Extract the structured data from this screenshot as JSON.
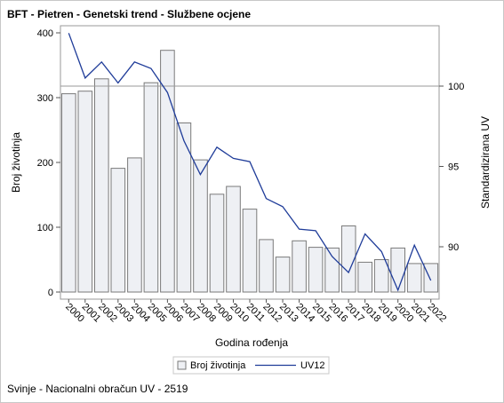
{
  "chart_data": {
    "type": "bar",
    "title": "BFT - Pietren - Genetski trend - Službene ocjene",
    "footnote": "Svinje - Nacionalni obračun UV - 2519",
    "xlabel": "Godina rođenja",
    "ylabel": "Broj životinja",
    "y2label": "Standardizirana UV",
    "categories": [
      "2000",
      "2001",
      "2002",
      "2003",
      "2004",
      "2005",
      "2006",
      "2007",
      "2008",
      "2009",
      "2010",
      "2011",
      "2012",
      "2013",
      "2014",
      "2015",
      "2016",
      "2017",
      "2018",
      "2019",
      "2020",
      "2021",
      "2022"
    ],
    "ylim": [
      0,
      410
    ],
    "yticks": [
      0,
      100,
      200,
      300,
      400
    ],
    "y2lim": [
      86.9,
      103.4
    ],
    "y2ticks": [
      90,
      95,
      100
    ],
    "reference_line_y2": 100,
    "grid": false,
    "legend_position": "bottom",
    "series": [
      {
        "name": "Broj životinja",
        "type": "bar",
        "axis": "left",
        "color": "#eef0f4",
        "stroke": "#7a7a7a",
        "values": [
          306,
          310,
          329,
          191,
          207,
          323,
          373,
          261,
          204,
          151,
          163,
          128,
          81,
          54,
          79,
          69,
          68,
          102,
          46,
          50,
          68,
          44,
          44
        ]
      },
      {
        "name": "UV12",
        "type": "line",
        "axis": "right",
        "color": "#1f3c99",
        "values": [
          103.3,
          100.5,
          101.5,
          100.2,
          101.5,
          101.1,
          99.6,
          96.6,
          94.5,
          96.2,
          95.5,
          95.3,
          93.0,
          92.5,
          91.1,
          91.0,
          89.4,
          88.4,
          90.8,
          89.7,
          87.3,
          90.1,
          87.9
        ]
      }
    ]
  }
}
